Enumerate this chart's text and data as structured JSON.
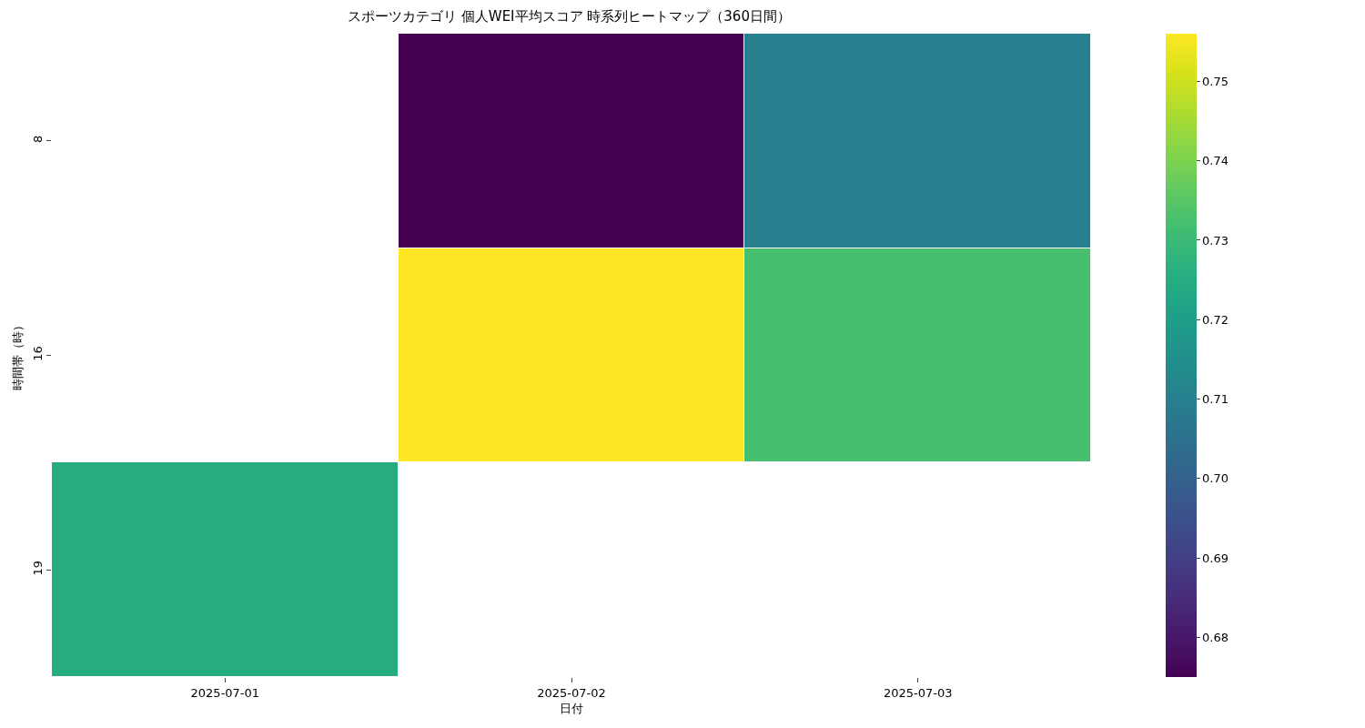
{
  "chart_data": {
    "type": "heatmap",
    "title": "スポーツカテゴリ 個人WEI平均スコア 時系列ヒートマップ（360日間）",
    "xlabel": "日付",
    "ylabel": "時間帯（時）",
    "categories": [
      "2025-07-01",
      "2025-07-02",
      "2025-07-03"
    ],
    "y_categories": [
      "8",
      "16",
      "19"
    ],
    "cells": [
      [
        null,
        0.675,
        0.71
      ],
      [
        null,
        0.756,
        0.732
      ],
      [
        0.725,
        null,
        null
      ]
    ],
    "clim": [
      0.675,
      0.756
    ],
    "cticks": [
      {
        "value": 0.68,
        "label": "0.68"
      },
      {
        "value": 0.69,
        "label": "0.69"
      },
      {
        "value": 0.7,
        "label": "0.70"
      },
      {
        "value": 0.71,
        "label": "0.71"
      },
      {
        "value": 0.72,
        "label": "0.72"
      },
      {
        "value": 0.73,
        "label": "0.73"
      },
      {
        "value": 0.74,
        "label": "0.74"
      },
      {
        "value": 0.75,
        "label": "0.75"
      }
    ],
    "grid": false
  }
}
